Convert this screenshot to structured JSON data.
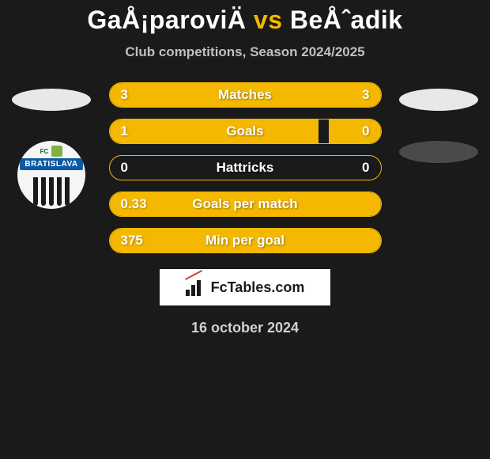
{
  "title": {
    "player1": "GaÅ¡paroviÄ",
    "vs": "vs",
    "player2": "BeÅˆadik"
  },
  "subtitle": "Club competitions, Season 2024/2025",
  "club_logo": {
    "fc_text": "FC",
    "brand_text": "BRATISLAVA"
  },
  "stats": [
    {
      "label": "Matches",
      "left_value": "3",
      "right_value": "3",
      "left_fill_pct": 50,
      "right_fill_pct": 50
    },
    {
      "label": "Goals",
      "left_value": "1",
      "right_value": "0",
      "left_fill_pct": 77,
      "right_fill_pct": 19
    },
    {
      "label": "Hattricks",
      "left_value": "0",
      "right_value": "0",
      "left_fill_pct": 0,
      "right_fill_pct": 0
    },
    {
      "label": "Goals per match",
      "left_value": "0.33",
      "right_value": "",
      "left_fill_pct": 100,
      "right_fill_pct": 0
    },
    {
      "label": "Min per goal",
      "left_value": "375",
      "right_value": "",
      "left_fill_pct": 100,
      "right_fill_pct": 0
    }
  ],
  "brand": {
    "text": "FcTables.com"
  },
  "date": "16 october 2024",
  "colors": {
    "accent": "#f5b800",
    "background": "#1a1a1a",
    "text_light": "#ffffff",
    "text_muted": "#c0c0c0",
    "oval_light": "#e8e8e8",
    "oval_dark": "#4a4a4a"
  }
}
